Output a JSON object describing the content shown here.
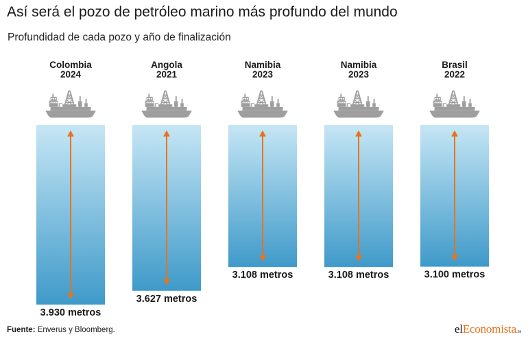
{
  "title": "Así será el pozo de petróleo marino más profundo del mundo",
  "subtitle": "Profundidad de cada pozo y año de finalización",
  "colors": {
    "water_top": "#c6e6f5",
    "water_bottom": "#3f9ac9",
    "arrow": "#e8731a",
    "ship": "#9e9e9e"
  },
  "chart_data": {
    "type": "bar",
    "categories": [
      "Colombia",
      "Angola",
      "Namibia",
      "Namibia",
      "Brasil"
    ],
    "years": [
      "2024",
      "2021",
      "2023",
      "2023",
      "2022"
    ],
    "values": [
      3930,
      3627,
      3108,
      3108,
      3100
    ],
    "value_labels": [
      "3.930 metros",
      "3.627 metros",
      "3.108 metros",
      "3.108 metros",
      "3.100 metros"
    ],
    "unit": "metros",
    "icon": "offshore-drillship-icon"
  },
  "footer": {
    "source_label": "Fuente:",
    "source_text": "Enverus y Bloomberg."
  },
  "brand": {
    "part1": "el",
    "part2": "Economista",
    "suffix": ".es"
  }
}
